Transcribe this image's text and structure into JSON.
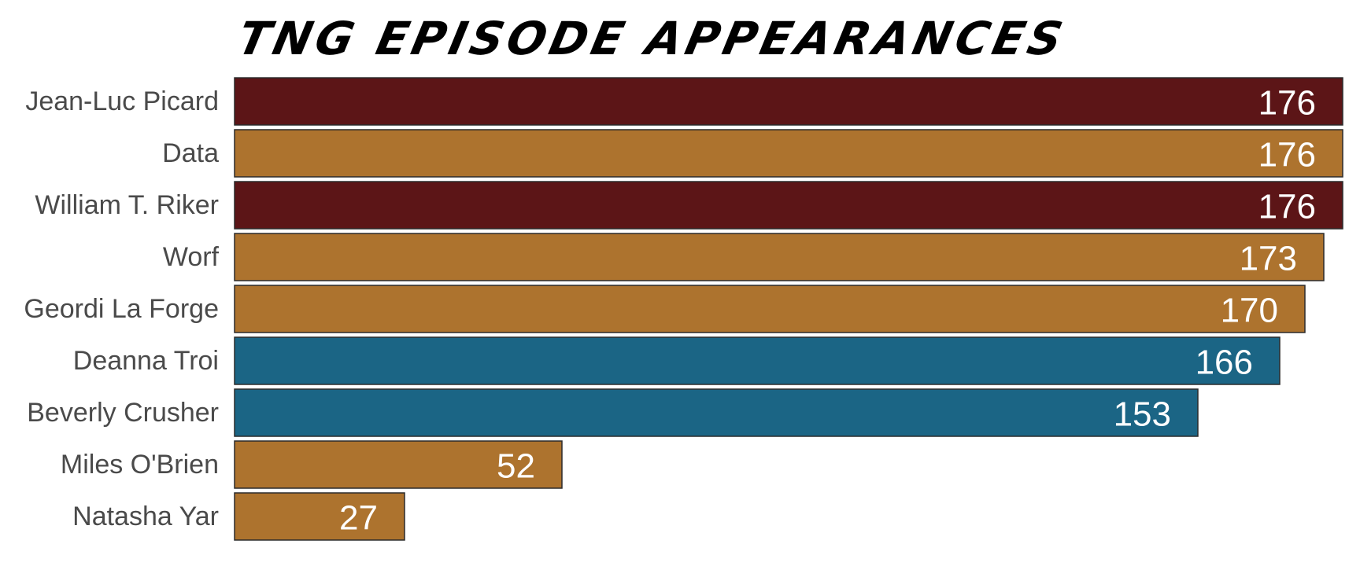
{
  "chart_data": {
    "type": "bar",
    "orientation": "horizontal",
    "title": "TNG Episode Appearances",
    "xlabel": "",
    "ylabel": "",
    "xlim": [
      0,
      176
    ],
    "grid": false,
    "legend": "none",
    "categories": [
      "Jean-Luc Picard",
      "Data",
      "William T. Riker",
      "Worf",
      "Geordi La Forge",
      "Deanna Troi",
      "Beverly Crusher",
      "Miles O'Brien",
      "Natasha Yar"
    ],
    "values": [
      176,
      176,
      176,
      173,
      170,
      166,
      153,
      52,
      27
    ],
    "bar_colors": [
      "#5c1517",
      "#ad732e",
      "#5c1517",
      "#ad732e",
      "#ad732e",
      "#1b6585",
      "#1b6585",
      "#ad732e",
      "#ad732e"
    ],
    "value_label_color": "#ffffff",
    "category_label_color": "#4a4a4a"
  }
}
